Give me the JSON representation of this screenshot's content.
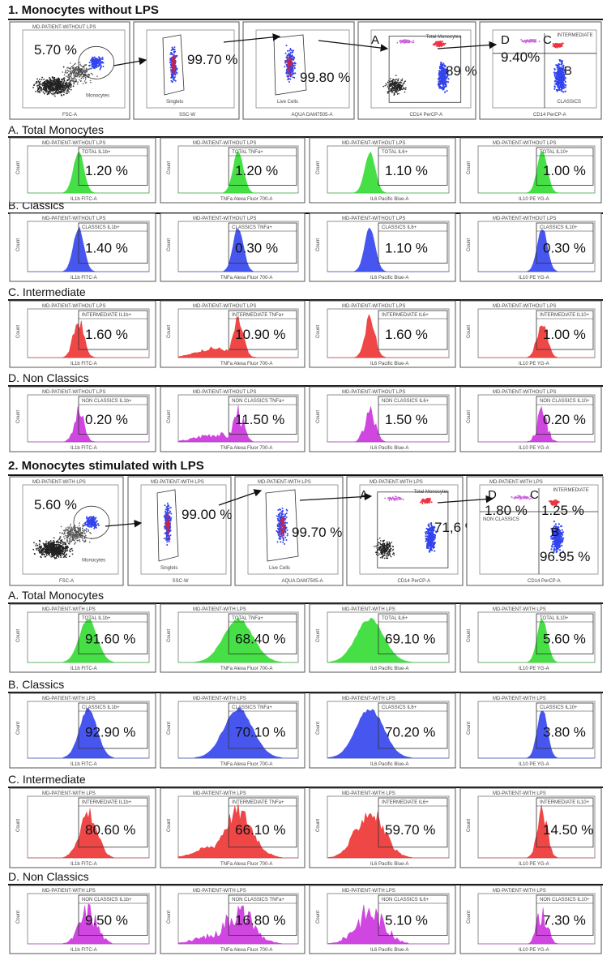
{
  "sections": [
    {
      "title": "1. Monocytes without LPS",
      "gating": {
        "panels": [
          {
            "header": "MD-PATIENT-WITHOUT LPS",
            "xaxis": "FSC-A",
            "gate": "Monocytes",
            "percent": "5.70 %"
          },
          {
            "header": "",
            "xaxis": "SSC-W",
            "gate": "Singlets",
            "percent": "99.70 %"
          },
          {
            "header": "",
            "xaxis": "AQUA DAM7505-A",
            "gate": "Live Cells",
            "percent": "99.80 %"
          },
          {
            "header": "",
            "xaxis": "CD14 PerCP-A",
            "gate": "Total Monocytes",
            "percent": "89 %",
            "letters": [
              "A"
            ]
          },
          {
            "header": "",
            "xaxis": "CD14 PerCP-A",
            "gate": "INTERMEDIATE",
            "percent": "9.40%",
            "letters": [
              "D",
              "C",
              "B"
            ],
            "extra_label": "CLASSICS"
          }
        ]
      },
      "subsections": [
        {
          "title": "A. Total Monocytes",
          "color": "#33dd33",
          "gate_prefix": "TOTAL",
          "values": [
            "1.20 %",
            "1.20 %",
            "1.10 %",
            "1.00 %"
          ]
        },
        {
          "title": "B. Classics",
          "color": "#3344ee",
          "gate_prefix": "CLASSICS",
          "values": [
            "1.40 %",
            "0.30 %",
            "1.10 %",
            "0.30 %"
          ]
        },
        {
          "title": "C. Intermediate",
          "color": "#ee3333",
          "gate_prefix": "INTERMEDIATE",
          "values": [
            "1.60 %",
            "10.90 %",
            "1.60 %",
            "1.00 %"
          ]
        },
        {
          "title": "D. Non Classics",
          "color": "#cc33dd",
          "gate_prefix": "NON CLASSICS",
          "values": [
            "0.20 %",
            "11.50 %",
            "1.50 %",
            "0.20 %"
          ]
        }
      ],
      "header": "MD-PATIENT-WITHOUT LPS"
    },
    {
      "title": "2. Monocytes stimulated with LPS",
      "gating": {
        "panels": [
          {
            "header": "MD-PATIENT-WITH LPS",
            "xaxis": "FSC-A",
            "gate": "Monocytes",
            "percent": "5.60 %"
          },
          {
            "header": "MD-PATIENT-WITH LPS",
            "xaxis": "SSC-W",
            "gate": "Singlets",
            "percent": "99.00 %"
          },
          {
            "header": "MD-PATIENT-WITH LPS",
            "xaxis": "AQUA DAM7505-A",
            "gate": "Live Cells",
            "percent": "99.70 %"
          },
          {
            "header": "MD-PATIENT-WITH LPS",
            "xaxis": "CD14 PerCP-A",
            "gate": "Total Monocytes",
            "percent": "71,6 %",
            "letters": [
              "A"
            ]
          },
          {
            "header": "MD-PATIENT-WITH LPS",
            "xaxis": "CD14 PerCP-A",
            "gate": "INTERMEDIATE",
            "percent": "1.80 %",
            "letters": [
              "D",
              "C",
              "B"
            ],
            "extra_label": "NON CLASSICS",
            "percent_c": "1.25 %",
            "percent_b": "96.95 %"
          }
        ]
      },
      "subsections": [
        {
          "title": "A. Total Monocytes",
          "color": "#33dd33",
          "gate_prefix": "TOTAL",
          "values": [
            "91.60 %",
            "68.40 %",
            "69.10 %",
            "5.60 %"
          ]
        },
        {
          "title": "B. Classics",
          "color": "#3344ee",
          "gate_prefix": "CLASSICS",
          "values": [
            "92.90 %",
            "70.10 %",
            "70.20 %",
            "3.80 %"
          ]
        },
        {
          "title": "C. Intermediate",
          "color": "#ee3333",
          "gate_prefix": "INTERMEDIATE",
          "values": [
            "80.60 %",
            "66.10 %",
            "59.70 %",
            "14.50 %"
          ]
        },
        {
          "title": "D. Non Classics",
          "color": "#cc33dd",
          "gate_prefix": "NON CLASSICS",
          "values": [
            "9.50 %",
            "16.80 %",
            "5.10 %",
            "7.30 %"
          ]
        }
      ],
      "header": "MD-PATIENT-WITH LPS"
    }
  ],
  "cytokines": [
    "IL1b",
    "TNFa",
    "IL6",
    "IL10"
  ],
  "xaxes": [
    "IL1b FITC-A",
    "TNFa Alexa Fluor 700-A",
    "IL6 Pacific Blue-A",
    "IL10 PE YG-A"
  ],
  "yaxis": "Count",
  "gate_suffix": "+"
}
